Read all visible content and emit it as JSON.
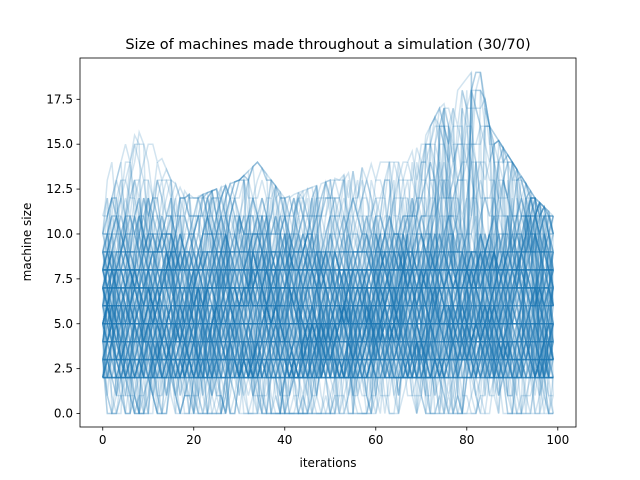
{
  "chart_data": {
    "type": "line",
    "title": "Size of machines made throughout a simulation (30/70)",
    "xlabel": "iterations",
    "ylabel": "machine size",
    "xlim": [
      -5,
      104
    ],
    "ylim": [
      -0.75,
      19.8
    ],
    "xticks": [
      0,
      20,
      40,
      60,
      80,
      100
    ],
    "yticks": [
      0.0,
      2.5,
      5.0,
      7.5,
      10.0,
      12.5,
      15.0,
      17.5
    ],
    "ytick_labels": [
      "0.0",
      "2.5",
      "5.0",
      "7.5",
      "10.0",
      "12.5",
      "15.0",
      "17.5"
    ],
    "xtick_labels": [
      "0",
      "20",
      "40",
      "60",
      "80",
      "100"
    ],
    "grid": false,
    "legend": "none",
    "series_color": "#1f77b4",
    "series_opacity": 0.2,
    "series_count": 200,
    "x_range": [
      0,
      99
    ],
    "value_range": [
      0,
      19
    ],
    "dense_band": [
      2,
      10
    ],
    "upper_envelope": [
      [
        0,
        13
      ],
      [
        4,
        15
      ],
      [
        10,
        16
      ],
      [
        15,
        13
      ],
      [
        20,
        12
      ],
      [
        30,
        13
      ],
      [
        34,
        14
      ],
      [
        40,
        12
      ],
      [
        50,
        13
      ],
      [
        60,
        14
      ],
      [
        65,
        14
      ],
      [
        70,
        15
      ],
      [
        74,
        17
      ],
      [
        78,
        18
      ],
      [
        81,
        19
      ],
      [
        83,
        19
      ],
      [
        85,
        16
      ],
      [
        90,
        14
      ],
      [
        95,
        12
      ],
      [
        99,
        11
      ]
    ],
    "lower_envelope": [
      [
        0,
        2
      ],
      [
        1,
        0
      ],
      [
        20,
        0
      ],
      [
        40,
        0
      ],
      [
        60,
        0
      ],
      [
        80,
        0
      ],
      [
        99,
        0
      ]
    ]
  }
}
